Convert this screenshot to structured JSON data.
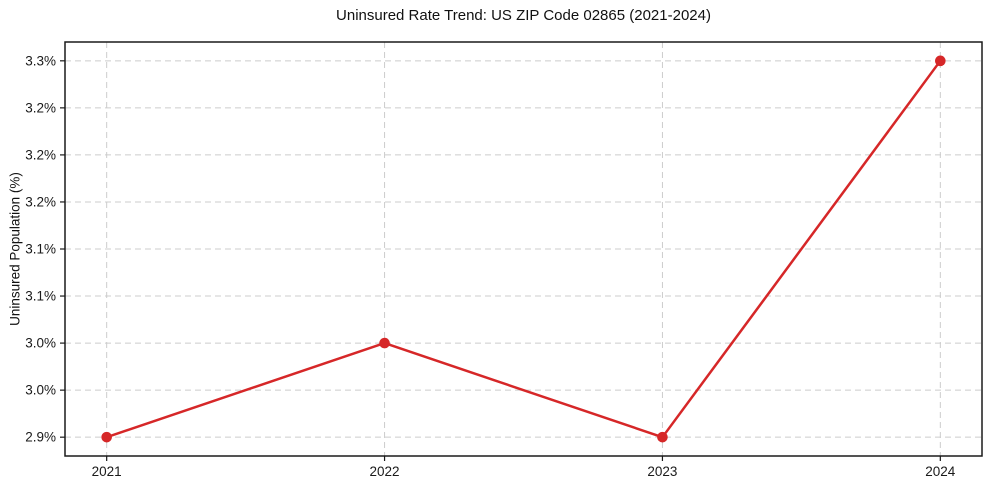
{
  "chart_data": {
    "type": "line",
    "title": "Uninsured Rate Trend: US ZIP Code 02865 (2021-2024)",
    "xlabel": "",
    "ylabel": "Uninsured Population (%)",
    "x": [
      2021,
      2022,
      2023,
      2024
    ],
    "x_tick_labels": [
      "2021",
      "2022",
      "2023",
      "2024"
    ],
    "values": [
      2.9,
      3.0,
      2.9,
      3.3
    ],
    "y_ticks": [
      {
        "value": 3.3,
        "label": "3.3%"
      },
      {
        "value": 3.25,
        "label": "3.2%"
      },
      {
        "value": 3.2,
        "label": "3.2%"
      },
      {
        "value": 3.15,
        "label": "3.2%"
      },
      {
        "value": 3.1,
        "label": "3.1%"
      },
      {
        "value": 3.05,
        "label": "3.1%"
      },
      {
        "value": 3.0,
        "label": "3.0%"
      },
      {
        "value": 2.95,
        "label": "3.0%"
      },
      {
        "value": 2.9,
        "label": "2.9%"
      }
    ],
    "xlim": [
      2020.85,
      2024.15
    ],
    "ylim": [
      2.88,
      3.32
    ],
    "grid": true,
    "legend": false,
    "marker": "circle",
    "line_color": "#d62728",
    "grid_color": "#cccccc",
    "spine_color": "#1a1a1a"
  }
}
